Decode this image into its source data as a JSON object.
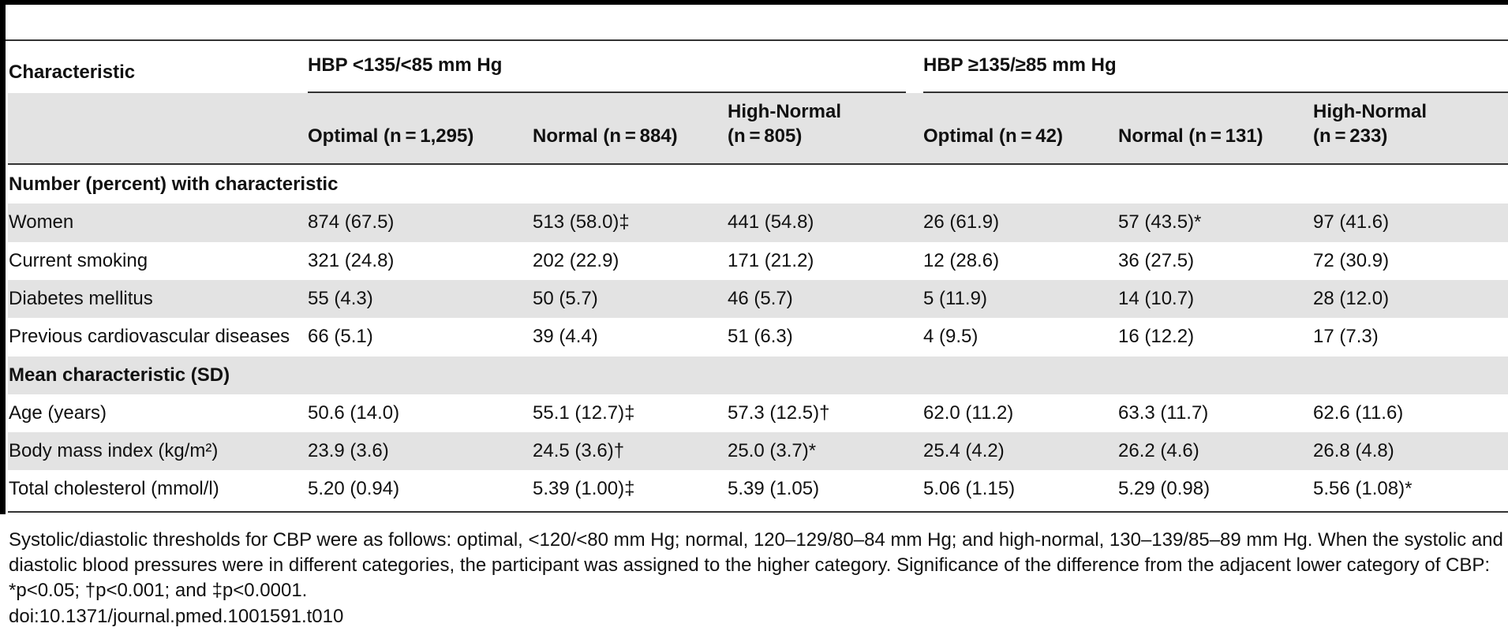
{
  "table": {
    "header": {
      "characteristic": "Characteristic",
      "group1": "HBP <135/<85 mm Hg",
      "group2": "HBP ≥135/≥85 mm Hg",
      "subcols": [
        {
          "line1": "Optimal (n = 1,295)",
          "line2": ""
        },
        {
          "line1": "Normal (n = 884)",
          "line2": ""
        },
        {
          "line1": "High-Normal",
          "line2": "(n = 805)"
        },
        {
          "line1": "Optimal (n = 42)",
          "line2": ""
        },
        {
          "line1": "Normal (n = 131)",
          "line2": ""
        },
        {
          "line1": "High-Normal",
          "line2": "(n = 233)"
        }
      ]
    },
    "sections": [
      {
        "title": "Number (percent) with characteristic",
        "rows": [
          {
            "label": "Women",
            "values": [
              "874 (67.5)",
              "513 (58.0)‡",
              "441 (54.8)",
              "26 (61.9)",
              "57 (43.5)*",
              "97 (41.6)"
            ]
          },
          {
            "label": "Current smoking",
            "values": [
              "321 (24.8)",
              "202 (22.9)",
              "171 (21.2)",
              "12 (28.6)",
              "36 (27.5)",
              "72 (30.9)"
            ]
          },
          {
            "label": "Diabetes mellitus",
            "values": [
              "55 (4.3)",
              "50 (5.7)",
              "46 (5.7)",
              "5 (11.9)",
              "14 (10.7)",
              "28 (12.0)"
            ]
          },
          {
            "label": "Previous cardiovascular diseases",
            "values": [
              "66 (5.1)",
              "39 (4.4)",
              "51 (6.3)",
              "4 (9.5)",
              "16 (12.2)",
              "17 (7.3)"
            ]
          }
        ]
      },
      {
        "title": "Mean characteristic (SD)",
        "rows": [
          {
            "label": "Age (years)",
            "values": [
              "50.6 (14.0)",
              "55.1 (12.7)‡",
              "57.3 (12.5)†",
              "62.0 (11.2)",
              "63.3 (11.7)",
              "62.6 (11.6)"
            ]
          },
          {
            "label": "Body mass index (kg/m²)",
            "values": [
              "23.9 (3.6)",
              "24.5 (3.6)†",
              "25.0 (3.7)*",
              "25.4 (4.2)",
              "26.2 (4.6)",
              "26.8 (4.8)"
            ]
          },
          {
            "label": "Total cholesterol (mmol/l)",
            "values": [
              "5.20 (0.94)",
              "5.39 (1.00)‡",
              "5.39 (1.05)",
              "5.06 (1.15)",
              "5.29 (0.98)",
              "5.56 (1.08)*"
            ]
          }
        ]
      }
    ]
  },
  "footnote": "Systolic/diastolic thresholds for CBP were as follows: optimal, <120/<80 mm Hg; normal, 120–129/80–84 mm Hg; and high-normal, 130–139/85–89 mm Hg. When the systolic and diastolic blood pressures were in different categories, the participant was assigned to the higher category. Significance of the difference from the adjacent lower category of CBP: *p<0.05; †p<0.001; and ‡p<0.0001.",
  "doi": "doi:10.1371/journal.pmed.1001591.t010"
}
